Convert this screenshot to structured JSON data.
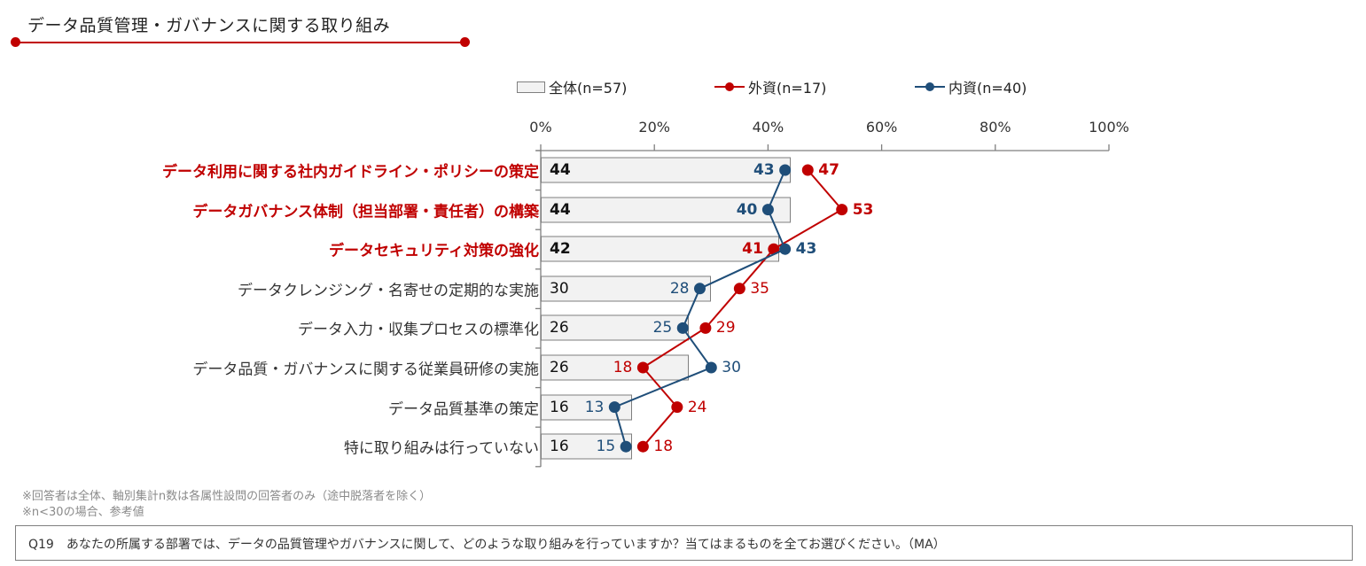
{
  "header": {
    "title": "データ品質管理・ガバナンスに関する取り組み",
    "accent_color": "#c00000"
  },
  "legend": {
    "total": "全体(n=57)",
    "foreign": "外資(n=17)",
    "domestic": "内資(n=40)"
  },
  "chart_data": {
    "type": "bar",
    "orientation": "horizontal",
    "title": "データ品質管理・ガバナンスに関する取り組み",
    "xlabel": "",
    "ylabel": "",
    "xlim": [
      0,
      100
    ],
    "x_ticks": [
      "0%",
      "20%",
      "40%",
      "60%",
      "80%",
      "100%"
    ],
    "grid": false,
    "legend_position": "top",
    "categories": [
      "データ利用に関する社内ガイドライン・ポリシーの策定",
      "データガバナンス体制（担当部署・責任者）の構築",
      "データセキュリティ対策の強化",
      "データクレンジング・名寄せの定期的な実施",
      "データ入力・収集プロセスの標準化",
      "データ品質・ガバナンスに関する従業員研修の実施",
      "データ品質基準の策定",
      "特に取り組みは行っていない"
    ],
    "highlighted": [
      true,
      true,
      true,
      false,
      false,
      false,
      false,
      false
    ],
    "series": [
      {
        "name": "全体(n=57)",
        "type": "bar",
        "color": "#f2f2f2",
        "values": [
          44,
          44,
          42,
          30,
          26,
          26,
          16,
          16
        ]
      },
      {
        "name": "外資(n=17)",
        "type": "line",
        "color": "#c00000",
        "values": [
          47,
          53,
          41,
          35,
          29,
          18,
          24,
          18
        ]
      },
      {
        "name": "内資(n=40)",
        "type": "line",
        "color": "#1f4e79",
        "values": [
          43,
          40,
          43,
          28,
          25,
          30,
          13,
          15
        ]
      }
    ]
  },
  "rows": [
    {
      "label": "データ利用に関する社内ガイドライン・ポリシーの策定",
      "total": "44",
      "foreign": "47",
      "domestic": "43"
    },
    {
      "label": "データガバナンス体制（担当部署・責任者）の構築",
      "total": "44",
      "foreign": "53",
      "domestic": "40"
    },
    {
      "label": "データセキュリティ対策の強化",
      "total": "42",
      "foreign": "41",
      "domestic": "43"
    },
    {
      "label": "データクレンジング・名寄せの定期的な実施",
      "total": "30",
      "foreign": "35",
      "domestic": "28"
    },
    {
      "label": "データ入力・収集プロセスの標準化",
      "total": "26",
      "foreign": "29",
      "domestic": "25"
    },
    {
      "label": "データ品質・ガバナンスに関する従業員研修の実施",
      "total": "26",
      "foreign": "18",
      "domestic": "30"
    },
    {
      "label": "データ品質基準の策定",
      "total": "16",
      "foreign": "24",
      "domestic": "13"
    },
    {
      "label": "特に取り組みは行っていない",
      "total": "16",
      "foreign": "18",
      "domestic": "15"
    }
  ],
  "notes": {
    "line1": "※回答者は全体、軸別集計n数は各属性設問の回答者のみ（途中脱落者を除く）",
    "line2": "※n<30の場合、参考値"
  },
  "question": "Q19　あなたの所属する部署では、データの品質管理やガバナンスに関して、どのような取り組みを行っていますか？当てはまるものを全てお選びください。（MA）"
}
